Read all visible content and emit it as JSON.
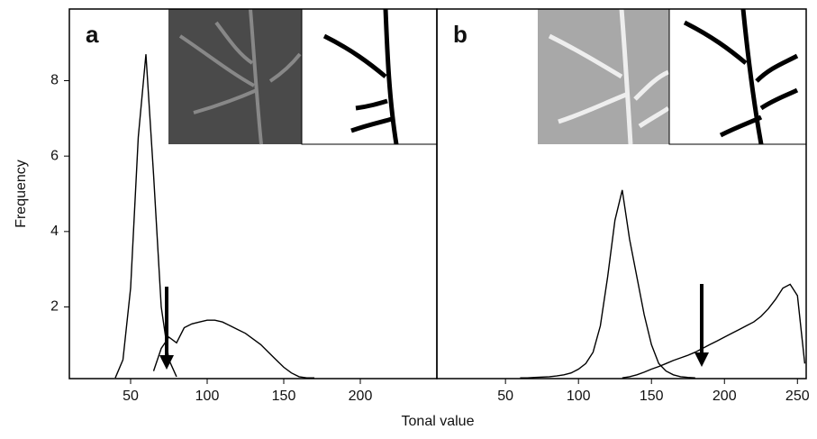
{
  "xlabel": "Tonal value",
  "ylabel": "Frequency",
  "chart_data": [
    {
      "type": "line",
      "label": "a",
      "x": [
        40,
        45,
        50,
        55,
        60,
        65,
        70,
        75,
        80,
        85,
        90,
        95,
        100,
        105,
        110,
        115,
        120,
        125,
        130,
        135,
        140,
        145,
        150,
        155,
        160,
        165,
        170
      ],
      "series": [
        {
          "color": "#000000",
          "values": [
            0.12,
            0.6,
            2.5,
            6.5,
            8.7,
            5.5,
            2.0,
            0.6,
            0.15,
            null,
            null,
            null,
            null,
            null,
            null,
            null,
            null,
            null,
            null,
            null,
            null,
            null,
            null,
            null,
            null,
            null,
            null
          ]
        },
        {
          "color": "#000000",
          "values": [
            null,
            null,
            null,
            null,
            null,
            0.3,
            0.9,
            1.2,
            1.05,
            1.45,
            1.55,
            1.6,
            1.65,
            1.65,
            1.6,
            1.5,
            1.4,
            1.3,
            1.15,
            1.0,
            0.8,
            0.6,
            0.4,
            0.25,
            0.15,
            0.12,
            0.12
          ]
        }
      ],
      "xlim": [
        10,
        250
      ],
      "ylim": [
        0.1,
        9.9
      ],
      "xticks": [
        50,
        100,
        150,
        200
      ],
      "yticks": [
        2,
        4,
        6,
        8
      ]
    },
    {
      "type": "line",
      "label": "b",
      "x": [
        60,
        65,
        70,
        75,
        80,
        85,
        90,
        95,
        100,
        105,
        110,
        115,
        120,
        125,
        130,
        135,
        140,
        145,
        150,
        155,
        160,
        165,
        170,
        175,
        180,
        185,
        190,
        195,
        200,
        205,
        210,
        215,
        220,
        225,
        230,
        235,
        240,
        245,
        250,
        255
      ],
      "series": [
        {
          "color": "#000000",
          "values": [
            0.12,
            0.12,
            0.13,
            0.14,
            0.15,
            0.17,
            0.2,
            0.25,
            0.35,
            0.5,
            0.8,
            1.5,
            2.8,
            4.3,
            5.1,
            3.8,
            2.8,
            1.8,
            1.0,
            0.5,
            0.3,
            0.2,
            0.15,
            0.13,
            0.12,
            null,
            null,
            null,
            null,
            null,
            null,
            null,
            null,
            null,
            null,
            null,
            null,
            null,
            null,
            null
          ]
        },
        {
          "color": "#000000",
          "values": [
            null,
            null,
            null,
            null,
            null,
            null,
            null,
            null,
            null,
            null,
            null,
            null,
            null,
            null,
            0.12,
            0.15,
            0.2,
            0.27,
            0.35,
            0.42,
            0.5,
            0.58,
            0.65,
            0.72,
            0.8,
            0.9,
            1.0,
            1.1,
            1.2,
            1.3,
            1.4,
            1.5,
            1.6,
            1.75,
            1.95,
            2.2,
            2.5,
            2.6,
            2.3,
            0.5
          ]
        }
      ],
      "xlim": [
        3,
        256
      ],
      "ylim": [
        0.1,
        9.9
      ],
      "xticks": [
        50,
        100,
        150,
        200,
        250
      ]
    }
  ]
}
